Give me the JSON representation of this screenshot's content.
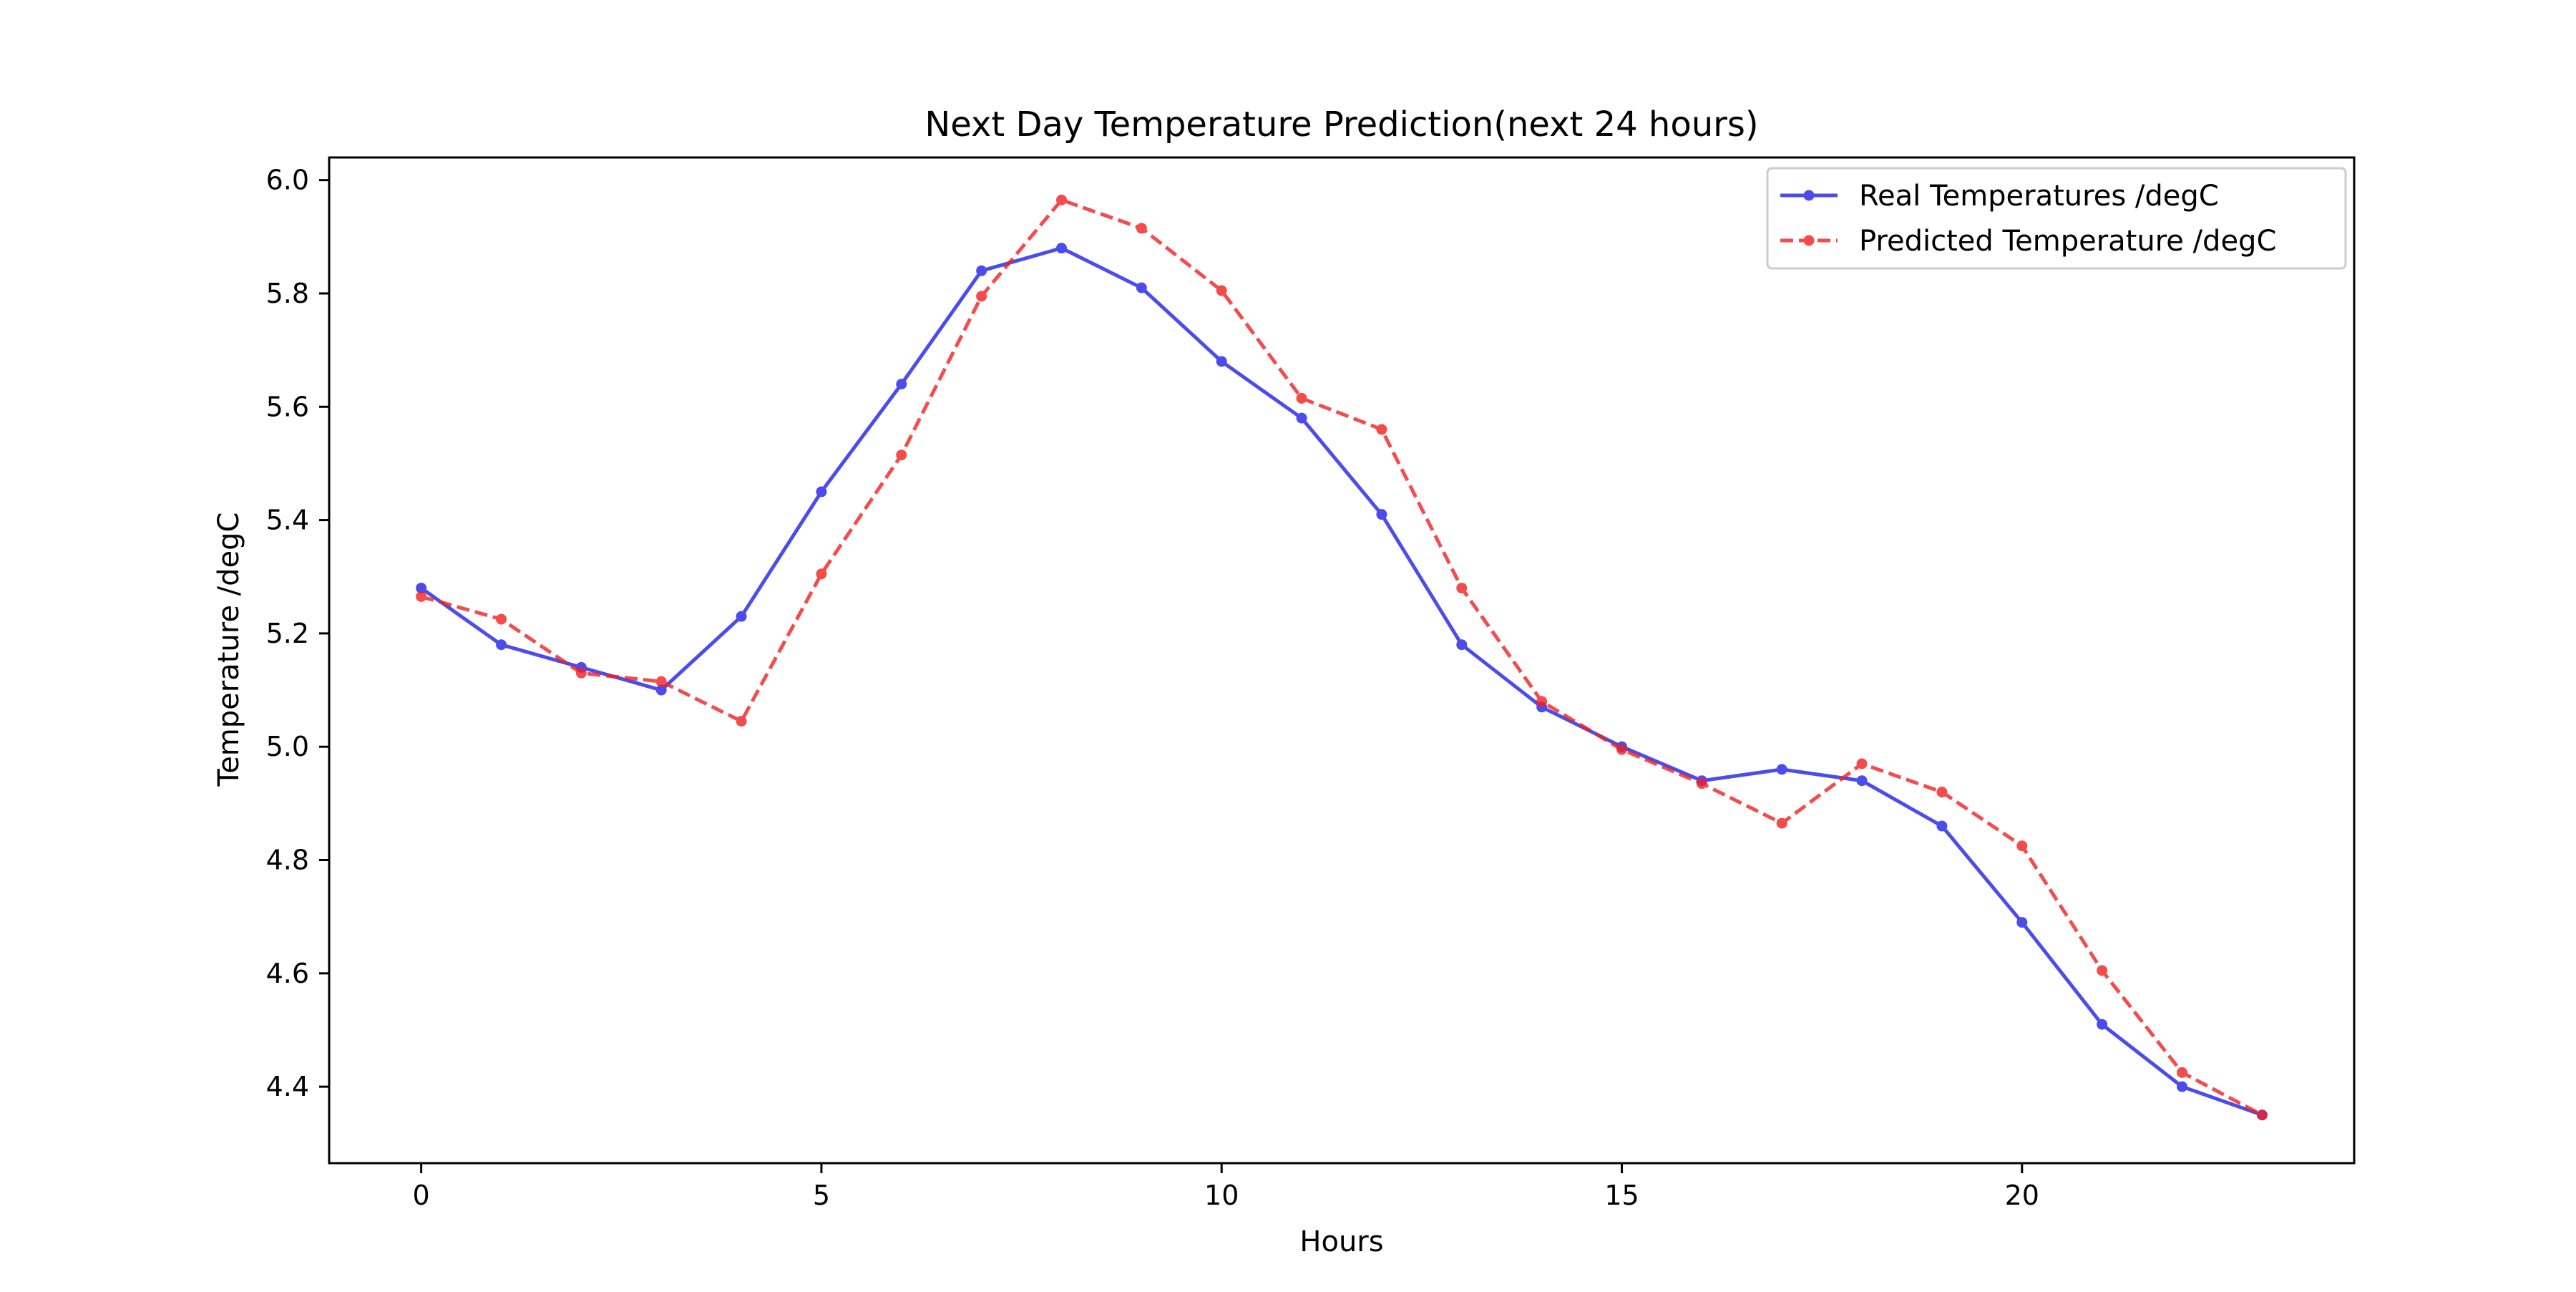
{
  "chart_data": {
    "type": "line",
    "title": "Next Day Temperature Prediction(next 24 hours)",
    "xlabel": "Hours",
    "ylabel": "Temperature /degC",
    "xlim": [
      -1.15,
      24.15
    ],
    "ylim": [
      4.265,
      6.04
    ],
    "xticks": [
      0,
      5,
      10,
      15,
      20
    ],
    "xtick_labels": [
      "0",
      "5",
      "10",
      "15",
      "20"
    ],
    "yticks": [
      4.4,
      4.6,
      4.8,
      5.0,
      5.2,
      5.4,
      5.6,
      5.8,
      6.0
    ],
    "ytick_labels": [
      "4.4",
      "4.6",
      "4.8",
      "5.0",
      "5.2",
      "5.4",
      "5.6",
      "5.8",
      "6.0"
    ],
    "grid": false,
    "legend_position": "top-right",
    "x": [
      0,
      1,
      2,
      3,
      4,
      5,
      6,
      7,
      8,
      9,
      10,
      11,
      12,
      13,
      14,
      15,
      16,
      17,
      18,
      19,
      20,
      21,
      22,
      23
    ],
    "series": [
      {
        "name": "Real Temperatures /degC",
        "color": "#2020e8",
        "line_style": "solid",
        "marker": "circle",
        "values": [
          5.28,
          5.18,
          5.14,
          5.1,
          5.23,
          5.45,
          5.64,
          5.84,
          5.88,
          5.81,
          5.68,
          5.58,
          5.41,
          5.18,
          5.07,
          5.0,
          4.94,
          4.96,
          4.94,
          4.86,
          4.69,
          4.51,
          4.4,
          4.35
        ]
      },
      {
        "name": "Predicted Temperature /degC",
        "color": "#f02020",
        "line_style": "dashed",
        "marker": "circle",
        "values": [
          5.265,
          5.225,
          5.13,
          5.115,
          5.045,
          5.305,
          5.515,
          5.795,
          5.965,
          5.915,
          5.805,
          5.615,
          5.56,
          5.28,
          5.08,
          4.995,
          4.935,
          4.865,
          4.97,
          4.92,
          4.825,
          4.605,
          4.425,
          4.35
        ]
      }
    ]
  }
}
